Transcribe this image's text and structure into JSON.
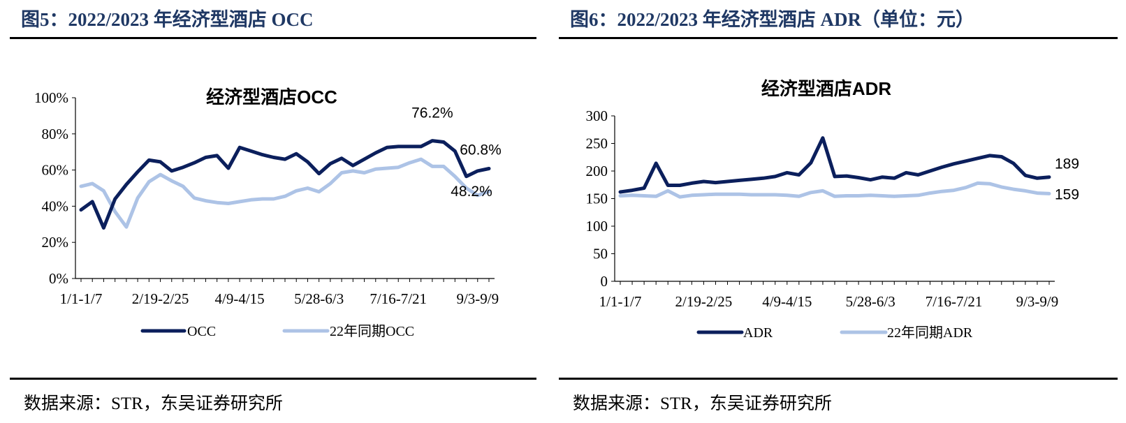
{
  "colors": {
    "primary": "#0b1f5c",
    "secondary": "#adc3e6",
    "heading": "#1f3864"
  },
  "left": {
    "figure_title": "图5：2022/2023 年经济型酒店 OCC",
    "source": "数据来源：STR，东吴证券研究所"
  },
  "right": {
    "figure_title": "图6：2022/2023 年经济型酒店 ADR（单位：元）",
    "source": "数据来源：STR，东吴证券研究所"
  },
  "chart_data": [
    {
      "type": "line",
      "title": "经济型酒店OCC",
      "y_tick_labels": [
        "0%",
        "20%",
        "40%",
        "60%",
        "80%",
        "100%"
      ],
      "ylim": [
        0,
        100
      ],
      "x_tick_labels": [
        "1/1-1/7",
        "2/19-2/25",
        "4/9-4/15",
        "5/28-6/3",
        "7/16-7/21",
        "9/3-9/9"
      ],
      "x_tick_indices": [
        0,
        7,
        14,
        21,
        28,
        35
      ],
      "grid": false,
      "legend_position": "bottom",
      "series": [
        {
          "name": "OCC",
          "color": "#0b1f5c",
          "values": [
            38,
            42.5,
            28,
            44,
            52,
            59,
            65.5,
            64.5,
            59.5,
            61.5,
            64,
            67,
            68,
            61,
            72.5,
            70.5,
            68.5,
            67,
            66,
            69,
            64.5,
            58,
            63.5,
            66.5,
            62.5,
            66,
            69.5,
            72.5,
            73,
            73,
            73,
            76.2,
            75.5,
            70.5,
            56.5,
            59.5,
            60.8
          ]
        },
        {
          "name": "22年同期OCC",
          "color": "#adc3e6",
          "values": [
            51,
            52.5,
            48.5,
            37,
            28.5,
            44.5,
            53.5,
            57.5,
            54,
            51,
            44.5,
            43,
            42,
            41.5,
            42.5,
            43.5,
            44,
            44,
            45.5,
            48.5,
            50,
            48,
            52.5,
            58.5,
            59.5,
            58.5,
            60.5,
            61,
            61.5,
            64,
            66,
            62,
            62,
            56.5,
            50,
            46,
            48.2
          ]
        }
      ],
      "annotations": [
        "76.2%",
        "60.8%",
        "48.2%"
      ]
    },
    {
      "type": "line",
      "title": "经济型酒店ADR",
      "y_tick_labels": [
        "0",
        "50",
        "100",
        "150",
        "200",
        "250",
        "300"
      ],
      "ylim": [
        0,
        300
      ],
      "x_tick_labels": [
        "1/1-1/7",
        "2/19-2/25",
        "4/9-4/15",
        "5/28-6/3",
        "7/16-7/21",
        "9/3-9/9"
      ],
      "x_tick_indices": [
        0,
        7,
        14,
        21,
        28,
        35
      ],
      "grid": false,
      "legend_position": "bottom",
      "series": [
        {
          "name": "ADR",
          "color": "#0b1f5c",
          "values": [
            162,
            165,
            169,
            214,
            174,
            174,
            178,
            181,
            179,
            181,
            183,
            185,
            187,
            190,
            197,
            193,
            215,
            260,
            190,
            191,
            188,
            184,
            189,
            187,
            197,
            193,
            200,
            207,
            213,
            218,
            223,
            228,
            226,
            214,
            192,
            187,
            189
          ]
        },
        {
          "name": "22年同期ADR",
          "color": "#adc3e6",
          "values": [
            155,
            156,
            155,
            154,
            164,
            153,
            156,
            157,
            158,
            158,
            158,
            157,
            157,
            157,
            156,
            154,
            161,
            164,
            154,
            155,
            155,
            156,
            155,
            154,
            155,
            156,
            160,
            163,
            165,
            170,
            178,
            177,
            171,
            167,
            164,
            160,
            159
          ]
        }
      ],
      "annotations": [
        "189",
        "159"
      ]
    }
  ]
}
